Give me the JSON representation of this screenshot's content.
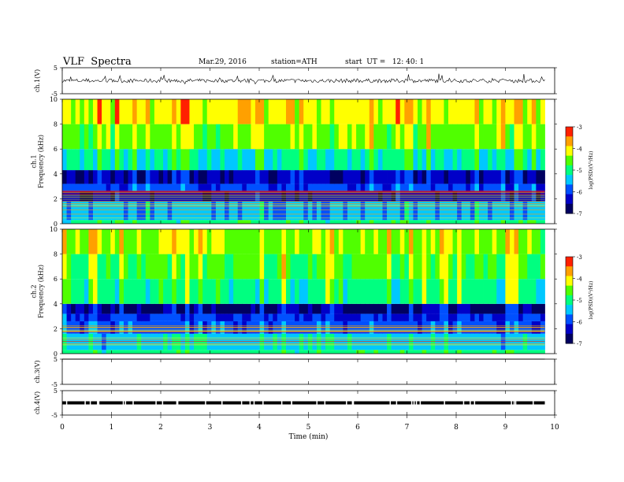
{
  "header": {
    "title": "VLF  Spectra",
    "date": "Mar.29, 2016",
    "station": "station=ATH",
    "start_ut": "start  UT =   12: 40: 1"
  },
  "chart_data": {
    "type": "heatmap",
    "x_axis": {
      "label": "Time  (min)",
      "range": [
        0,
        10
      ],
      "ticks": [
        "0",
        "1",
        "2",
        "3",
        "4",
        "5",
        "6",
        "7",
        "8",
        "9",
        "10"
      ]
    },
    "panels": [
      {
        "id": "ch1-waveform",
        "type": "line",
        "ylabel": "ch.1(V)",
        "ylim": [
          -5,
          5
        ],
        "yticks": [
          "5",
          "-5"
        ],
        "baseline": 0,
        "amplitude": 1.5,
        "data_end_min": 9.8
      },
      {
        "id": "ch1-spectrogram",
        "type": "heatmap",
        "ylabel": "ch.1\nFrequency (kHz)",
        "ylim": [
          0,
          10
        ],
        "yticks": [
          "0",
          "2",
          "4",
          "6",
          "8",
          "10"
        ],
        "colorbar": {
          "label": "log(PSD)(V²/Hz)",
          "range": [
            -7,
            -3
          ],
          "ticks": [
            "-3",
            "-4",
            "-5",
            "-6",
            "-7"
          ]
        },
        "band_profile": [
          {
            "freq_range": [
              0,
              0.3
            ],
            "level": -5.0
          },
          {
            "freq_range": [
              0.3,
              1.8
            ],
            "level": -5.6
          },
          {
            "freq_range": [
              1.8,
              2.6
            ],
            "level": -6.4
          },
          {
            "freq_range": [
              2.6,
              3.2
            ],
            "level": -6.0
          },
          {
            "freq_range": [
              3.2,
              4.3
            ],
            "level": -6.5
          },
          {
            "freq_range": [
              4.3,
              6.0
            ],
            "level": -5.2
          },
          {
            "freq_range": [
              6.0,
              8.0
            ],
            "level": -4.6
          },
          {
            "freq_range": [
              8.0,
              10.0
            ],
            "level": -4.2
          }
        ],
        "data_end_min": 9.8
      },
      {
        "id": "ch2-spectrogram",
        "type": "heatmap",
        "ylabel": "ch.2\nFrequency (kHz)",
        "ylim": [
          0,
          10
        ],
        "yticks": [
          "0",
          "2",
          "4",
          "6",
          "8",
          "10"
        ],
        "colorbar": {
          "label": "log(PSD)(V²/Hz)",
          "range": [
            -7,
            -3
          ],
          "ticks": [
            "-3",
            "-4",
            "-5",
            "-6",
            "-7"
          ]
        },
        "band_profile": [
          {
            "freq_range": [
              0,
              0.3
            ],
            "level": -5.0
          },
          {
            "freq_range": [
              0.3,
              1.6
            ],
            "level": -5.4
          },
          {
            "freq_range": [
              1.6,
              2.6
            ],
            "level": -5.9
          },
          {
            "freq_range": [
              2.6,
              3.2
            ],
            "level": -6.1
          },
          {
            "freq_range": [
              3.2,
              4.0
            ],
            "level": -6.6
          },
          {
            "freq_range": [
              4.0,
              6.0
            ],
            "level": -5.0
          },
          {
            "freq_range": [
              6.0,
              8.0
            ],
            "level": -4.7
          },
          {
            "freq_range": [
              8.0,
              10.0
            ],
            "level": -4.4
          }
        ],
        "data_end_min": 9.8
      },
      {
        "id": "ch3-waveform",
        "type": "line",
        "ylabel": "ch.3(V)",
        "ylim": [
          -5,
          5
        ],
        "yticks": [
          "5",
          "-5"
        ],
        "baseline": 5,
        "data_end_min": 9.8
      },
      {
        "id": "ch4-waveform",
        "type": "line",
        "ylabel": "ch.4(V)",
        "ylim": [
          -5,
          5
        ],
        "yticks": [
          "5",
          "-5"
        ],
        "baseline": 0,
        "amplitude": 0.3,
        "data_end_min": 9.8
      }
    ],
    "colormap": [
      "#000060",
      "#0000c8",
      "#0050ff",
      "#00c8ff",
      "#00ff80",
      "#50ff00",
      "#ffff00",
      "#ffa000",
      "#ff2000",
      "#ffffff"
    ]
  }
}
